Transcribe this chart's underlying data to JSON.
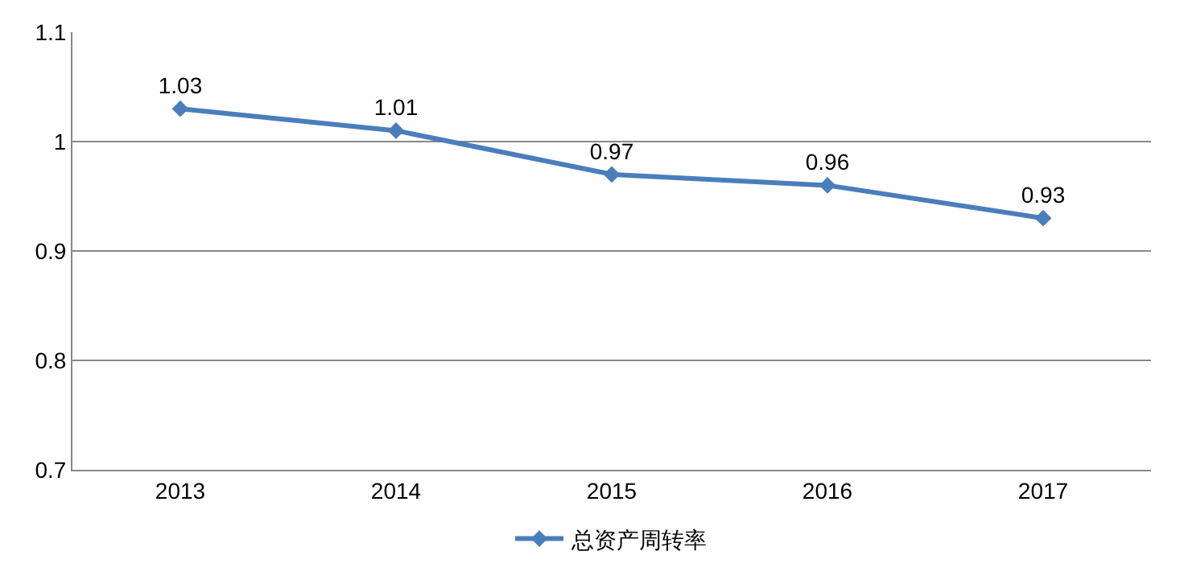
{
  "chart_data": {
    "type": "line",
    "categories": [
      "2013",
      "2014",
      "2015",
      "2016",
      "2017"
    ],
    "series": [
      {
        "name": "总资产周转率",
        "color": "#4a7ebb",
        "values": [
          1.03,
          1.01,
          0.97,
          0.96,
          0.93
        ]
      }
    ],
    "ylim": [
      0.7,
      1.1
    ],
    "yticks": [
      0.7,
      0.8,
      0.9,
      1,
      1.1
    ],
    "grid": "y",
    "legend": "bottom",
    "marker": "diamond",
    "line_style": "solid",
    "data_labels": true
  }
}
